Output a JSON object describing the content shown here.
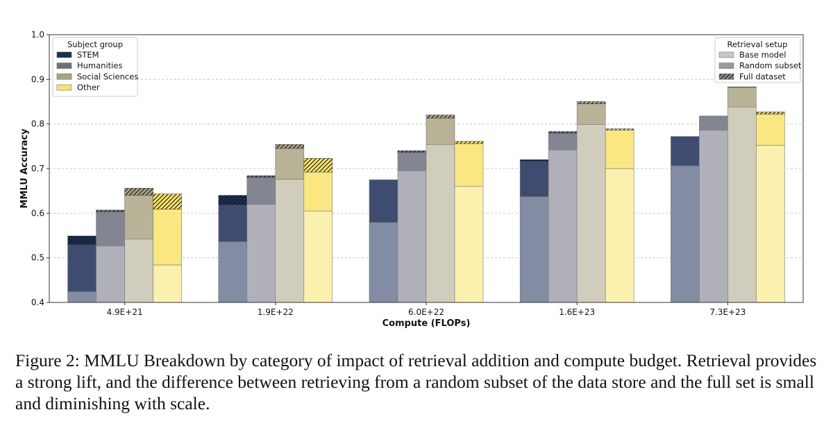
{
  "chart_data": {
    "type": "bar",
    "title": "",
    "xlabel": "Compute (FLOPs)",
    "ylabel": "MMLU Accuracy",
    "ylim": [
      0.4,
      1.0
    ],
    "yticks": [
      "0.4",
      "0.5",
      "0.6",
      "0.7",
      "0.8",
      "0.9",
      "1.0"
    ],
    "grid": true,
    "categories": [
      "4.9E+21",
      "1.9E+22",
      "6.0E+22",
      "1.6E+23",
      "7.3E+23"
    ],
    "series": [
      {
        "name": "STEM",
        "color": "#1c2e55",
        "base_model": [
          0.424,
          0.536,
          0.579,
          0.637,
          0.706
        ],
        "random_subset": [
          0.529,
          0.618,
          0.675,
          0.716,
          0.772
        ],
        "full_dataset": [
          0.549,
          0.64,
          0.673,
          0.72,
          0.771
        ]
      },
      {
        "name": "Humanities",
        "color": "#6e7080",
        "base_model": [
          0.527,
          0.62,
          0.695,
          0.742,
          0.786
        ],
        "random_subset": [
          0.603,
          0.68,
          0.736,
          0.779,
          0.818
        ],
        "full_dataset": [
          0.607,
          0.684,
          0.74,
          0.783,
          0.818
        ]
      },
      {
        "name": "Social Sciences",
        "color": "#aba485",
        "base_model": [
          0.542,
          0.676,
          0.754,
          0.799,
          0.838
        ],
        "random_subset": [
          0.64,
          0.745,
          0.813,
          0.845,
          0.882
        ],
        "full_dataset": [
          0.656,
          0.754,
          0.82,
          0.85,
          0.883
        ]
      },
      {
        "name": "Other",
        "color": "#f9e36c",
        "base_model": [
          0.484,
          0.605,
          0.66,
          0.7,
          0.752
        ],
        "random_subset": [
          0.609,
          0.692,
          0.756,
          0.786,
          0.822
        ],
        "full_dataset": [
          0.643,
          0.723,
          0.761,
          0.789,
          0.827
        ]
      }
    ],
    "legend_subject": {
      "title": "Subject group",
      "items": [
        "STEM",
        "Humanities",
        "Social Sciences",
        "Other"
      ],
      "placement": "top-left"
    },
    "legend_retrieval": {
      "title": "Retrieval setup",
      "items": [
        "Base model",
        "Random subset",
        "Full dataset"
      ],
      "colors": [
        "#c8c8c8",
        "#9a9a9a",
        "#8a8a8a"
      ],
      "placement": "top-right"
    }
  },
  "caption": "Figure 2: MMLU Breakdown by category of impact of retrieval addition and compute budget. Retrieval provides a strong lift, and the difference between retrieving from a random subset of the data store and the full set is small and diminishing with scale."
}
